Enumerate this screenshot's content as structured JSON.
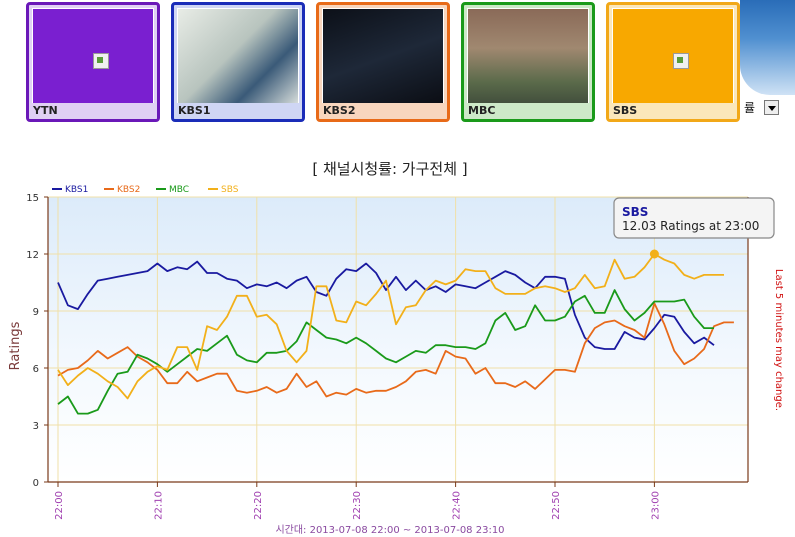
{
  "channels": [
    {
      "label": "YTN",
      "border": "#6a18b8",
      "fill": "#7a1fd0",
      "labelbg": "#e0d0f4",
      "thumb": "broken"
    },
    {
      "label": "KBS1",
      "border": "#1a2cb8",
      "fill": "#c8d0c8",
      "labelbg": "#cfd6f4",
      "thumb": "scene-hospital"
    },
    {
      "label": "KBS2",
      "border": "#e86a18",
      "fill": "#151a22",
      "labelbg": "#f8d6be",
      "thumb": "scene-dark"
    },
    {
      "label": "MBC",
      "border": "#1a9a1a",
      "fill": "#8a7560",
      "labelbg": "#cde9c8",
      "thumb": "scene-crowd"
    },
    {
      "label": "SBS",
      "border": "#f2a818",
      "fill": "#f8a800",
      "labelbg": "#fbe7ba",
      "thumb": "broken"
    }
  ],
  "dropdown": {
    "value": "률"
  },
  "chart_data": {
    "type": "line",
    "title": "[ 채널시청률: 가구전체 ]",
    "ylabel": "Ratings",
    "right_note": "Last 5 minutes may change.",
    "xlabel": "시간대: 2013-07-08 22:00 ~ 2013-07-08 23:10",
    "ylim": [
      0,
      15
    ],
    "yticks": [
      0,
      3,
      6,
      9,
      12,
      15
    ],
    "xticks": [
      "22:00",
      "22:10",
      "22:20",
      "22:30",
      "22:40",
      "22:50",
      "23:00"
    ],
    "grid": true,
    "legend": "top-left",
    "tooltip": {
      "series": "SBS",
      "text": "12.03 Ratings at 23:00",
      "index": 60
    },
    "series": [
      {
        "name": "KBS1",
        "color": "#1a1aa0",
        "values": [
          10.5,
          9.3,
          9.1,
          9.9,
          10.6,
          10.7,
          10.8,
          10.9,
          11.0,
          11.1,
          11.5,
          11.1,
          11.3,
          11.2,
          11.6,
          11.0,
          11.0,
          10.7,
          10.6,
          10.2,
          10.4,
          10.3,
          10.5,
          10.2,
          10.6,
          10.8,
          10.0,
          9.8,
          10.7,
          11.2,
          11.1,
          11.5,
          11.0,
          10.1,
          10.8,
          10.1,
          10.6,
          10.1,
          10.3,
          10.0,
          10.4,
          10.3,
          10.2,
          10.5,
          10.8,
          11.1,
          10.9,
          10.5,
          10.2,
          10.8,
          10.8,
          10.7,
          8.8,
          7.6,
          7.1,
          7.0,
          7.0,
          7.9,
          7.6,
          7.5,
          8.1,
          8.8,
          8.7,
          7.9,
          7.3,
          7.6,
          7.2
        ]
      },
      {
        "name": "KBS2",
        "color": "#e86a1a",
        "values": [
          5.6,
          5.9,
          6.0,
          6.4,
          6.9,
          6.5,
          6.8,
          7.1,
          6.6,
          6.3,
          5.9,
          5.2,
          5.2,
          5.8,
          5.3,
          5.5,
          5.7,
          5.7,
          4.8,
          4.7,
          4.8,
          5.0,
          4.7,
          4.9,
          5.7,
          5.0,
          5.3,
          4.5,
          4.7,
          4.6,
          4.9,
          4.7,
          4.8,
          4.8,
          5.0,
          5.3,
          5.8,
          5.9,
          5.7,
          6.9,
          6.6,
          6.5,
          5.7,
          6.0,
          5.2,
          5.2,
          5.0,
          5.3,
          4.9,
          5.4,
          5.9,
          5.9,
          5.8,
          7.3,
          8.1,
          8.4,
          8.5,
          8.2,
          8.0,
          7.6,
          9.4,
          8.3,
          6.9,
          6.2,
          6.5,
          7.0,
          8.2,
          8.4,
          8.4
        ]
      },
      {
        "name": "MBC",
        "color": "#1a9a1a",
        "values": [
          4.1,
          4.5,
          3.6,
          3.6,
          3.8,
          4.8,
          5.7,
          5.8,
          6.7,
          6.5,
          6.2,
          5.8,
          6.2,
          6.6,
          7.0,
          6.9,
          7.3,
          7.7,
          6.7,
          6.4,
          6.3,
          6.8,
          6.8,
          6.9,
          7.4,
          8.4,
          8.0,
          7.6,
          7.5,
          7.3,
          7.6,
          7.3,
          6.9,
          6.5,
          6.3,
          6.6,
          6.9,
          6.8,
          7.2,
          7.2,
          7.1,
          7.1,
          7.0,
          7.3,
          8.5,
          8.9,
          8.0,
          8.2,
          9.3,
          8.5,
          8.5,
          8.7,
          9.5,
          9.8,
          8.9,
          8.9,
          10.1,
          9.1,
          8.5,
          8.9,
          9.5,
          9.5,
          9.5,
          9.6,
          8.7,
          8.1,
          8.1
        ]
      },
      {
        "name": "SBS",
        "color": "#f2b01a",
        "values": [
          5.9,
          5.1,
          5.6,
          6.0,
          5.7,
          5.3,
          5.0,
          4.4,
          5.3,
          5.8,
          6.1,
          5.9,
          7.1,
          7.1,
          5.9,
          8.2,
          8.0,
          8.7,
          9.8,
          9.8,
          8.7,
          8.8,
          8.3,
          6.9,
          6.3,
          6.9,
          10.3,
          10.3,
          8.5,
          8.4,
          9.5,
          9.3,
          9.9,
          10.6,
          8.3,
          9.2,
          9.3,
          10.1,
          10.6,
          10.4,
          10.6,
          11.2,
          11.1,
          11.1,
          10.2,
          9.9,
          9.9,
          9.9,
          10.2,
          10.3,
          10.2,
          10.0,
          10.2,
          10.9,
          10.2,
          10.3,
          11.7,
          10.7,
          10.8,
          11.3,
          12.0,
          11.7,
          11.5,
          10.9,
          10.7,
          10.9,
          10.9,
          10.9
        ]
      }
    ]
  }
}
